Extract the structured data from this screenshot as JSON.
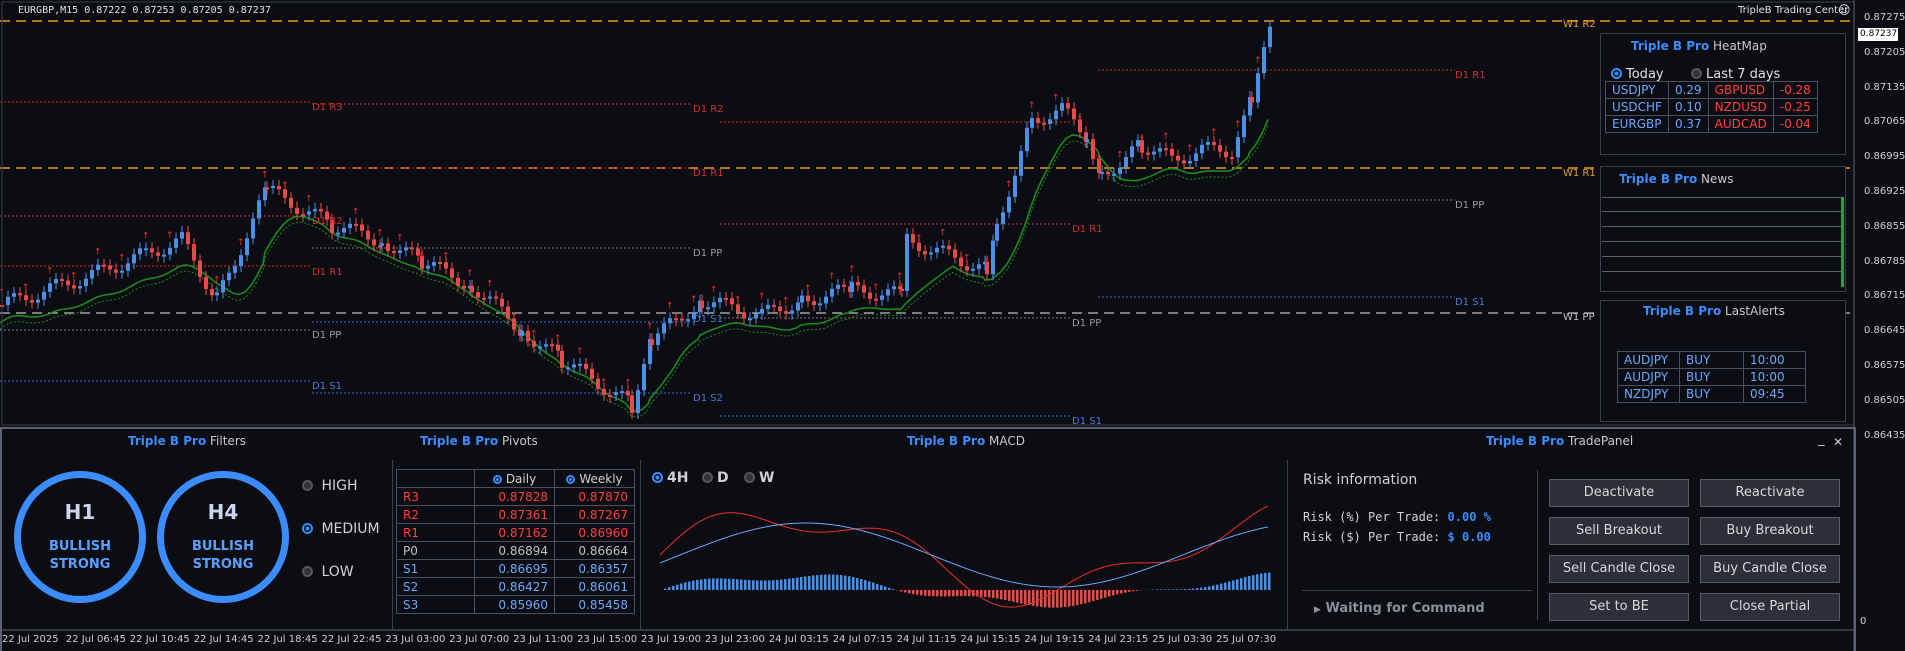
{
  "chart": {
    "symbol_line": "EURGBP,M15  0.87222 0.87253 0.87205 0.87237",
    "brand": "TripleB Trading Center",
    "smiley": "☺",
    "current_price": "0.87237",
    "price_ticks": [
      "0.87275",
      "0.87205",
      "0.87135",
      "0.87065",
      "0.86995",
      "0.86925",
      "0.86855",
      "0.86785",
      "0.86715",
      "0.86645",
      "0.86575",
      "0.86505",
      "0.86435"
    ],
    "time_ticks": [
      "22 Jul 2025",
      "22 Jul 06:45",
      "22 Jul 10:45",
      "22 Jul 14:45",
      "22 Jul 18:45",
      "22 Jul 22:45",
      "23 Jul 03:00",
      "23 Jul 07:00",
      "23 Jul 11:00",
      "23 Jul 15:00",
      "23 Jul 19:00",
      "23 Jul 23:00",
      "24 Jul 03:15",
      "24 Jul 07:15",
      "24 Jul 11:15",
      "24 Jul 15:15",
      "24 Jul 19:15",
      "24 Jul 23:15",
      "25 Jul 03:30",
      "25 Jul 07:30"
    ],
    "level_labels": {
      "w1r2": "W1 R2",
      "w1r1": "W1 R1",
      "w1pp": "W1 PP",
      "d1r3": "D1 R3",
      "d1r2": "D1 R2",
      "d1r1": "D1 R1",
      "d1pp": "D1 PP",
      "d1s1": "D1 S1",
      "d1s2": "D1 S2"
    },
    "macd_zero": "0",
    "colors": {
      "bull": "#4a8fe8",
      "bear": "#e84a4a",
      "w1": "#e89a2a",
      "d1_res": "#c82a2a",
      "d1_sup": "#3a6ad8"
    }
  },
  "heatmap": {
    "brand": "Triple B Pro",
    "title": "HeatMap",
    "radio_today": "Today",
    "radio_7days": "Last 7 days",
    "rows": [
      {
        "sym1": "USDJPY",
        "v1": "0.29",
        "sym2": "GBPUSD",
        "v2": "-0.28"
      },
      {
        "sym1": "USDCHF",
        "v1": "0.10",
        "sym2": "NZDUSD",
        "v2": "-0.25"
      },
      {
        "sym1": "EURGBP",
        "v1": "0.37",
        "sym2": "AUDCAD",
        "v2": "-0.04"
      }
    ]
  },
  "news": {
    "brand": "Triple B Pro",
    "title": "News"
  },
  "alerts": {
    "brand": "Triple B Pro",
    "title": "LastAlerts",
    "rows": [
      {
        "sym": "AUDJPY",
        "side": "BUY",
        "time": "10:00"
      },
      {
        "sym": "AUDJPY",
        "side": "BUY",
        "time": "10:00"
      },
      {
        "sym": "NZDJPY",
        "side": "BUY",
        "time": "09:45"
      }
    ]
  },
  "filters": {
    "brand": "Triple B Pro",
    "title": "Filters",
    "h1": {
      "tf": "H1",
      "state1": "BULLISH",
      "state2": "STRONG"
    },
    "h4": {
      "tf": "H4",
      "state1": "BULLISH",
      "state2": "STRONG"
    },
    "options": [
      "HIGH",
      "MEDIUM",
      "LOW"
    ],
    "selected": "MEDIUM"
  },
  "pivots": {
    "brand": "Triple B Pro",
    "title": "Pivots",
    "col_daily": "Daily",
    "col_weekly": "Weekly",
    "rows": [
      {
        "label": "R3",
        "daily": "0.87828",
        "weekly": "0.87870",
        "kind": "res"
      },
      {
        "label": "R2",
        "daily": "0.87361",
        "weekly": "0.87267",
        "kind": "res"
      },
      {
        "label": "R1",
        "daily": "0.87162",
        "weekly": "0.86960",
        "kind": "res"
      },
      {
        "label": "P0",
        "daily": "0.86894",
        "weekly": "0.86664",
        "kind": "pp"
      },
      {
        "label": "S1",
        "daily": "0.86695",
        "weekly": "0.86357",
        "kind": "sup"
      },
      {
        "label": "S2",
        "daily": "0.86427",
        "weekly": "0.86061",
        "kind": "sup"
      },
      {
        "label": "S3",
        "daily": "0.85960",
        "weekly": "0.85458",
        "kind": "sup"
      }
    ]
  },
  "macd": {
    "brand": "Triple B Pro",
    "title": "MACD",
    "timeframes": [
      "4H",
      "D",
      "W"
    ],
    "selected": "4H"
  },
  "tradepanel": {
    "brand": "Triple B Pro",
    "title": "TradePanel",
    "minimize": "_",
    "close": "✕",
    "risk_title": "Risk information",
    "risk_pct_label": "Risk (%) Per Trade:",
    "risk_pct_value": "0.00 %",
    "risk_usd_label": "Risk ($) Per Trade:",
    "risk_usd_value": "$ 0.00",
    "status": "Waiting for Command",
    "buttons": {
      "deactivate": "Deactivate",
      "reactivate": "Reactivate",
      "sell_breakout": "Sell Breakout",
      "buy_breakout": "Buy Breakout",
      "sell_candle_close": "Sell Candle Close",
      "buy_candle_close": "Buy Candle Close",
      "set_to_be": "Set to BE",
      "close_partial": "Close Partial"
    }
  }
}
